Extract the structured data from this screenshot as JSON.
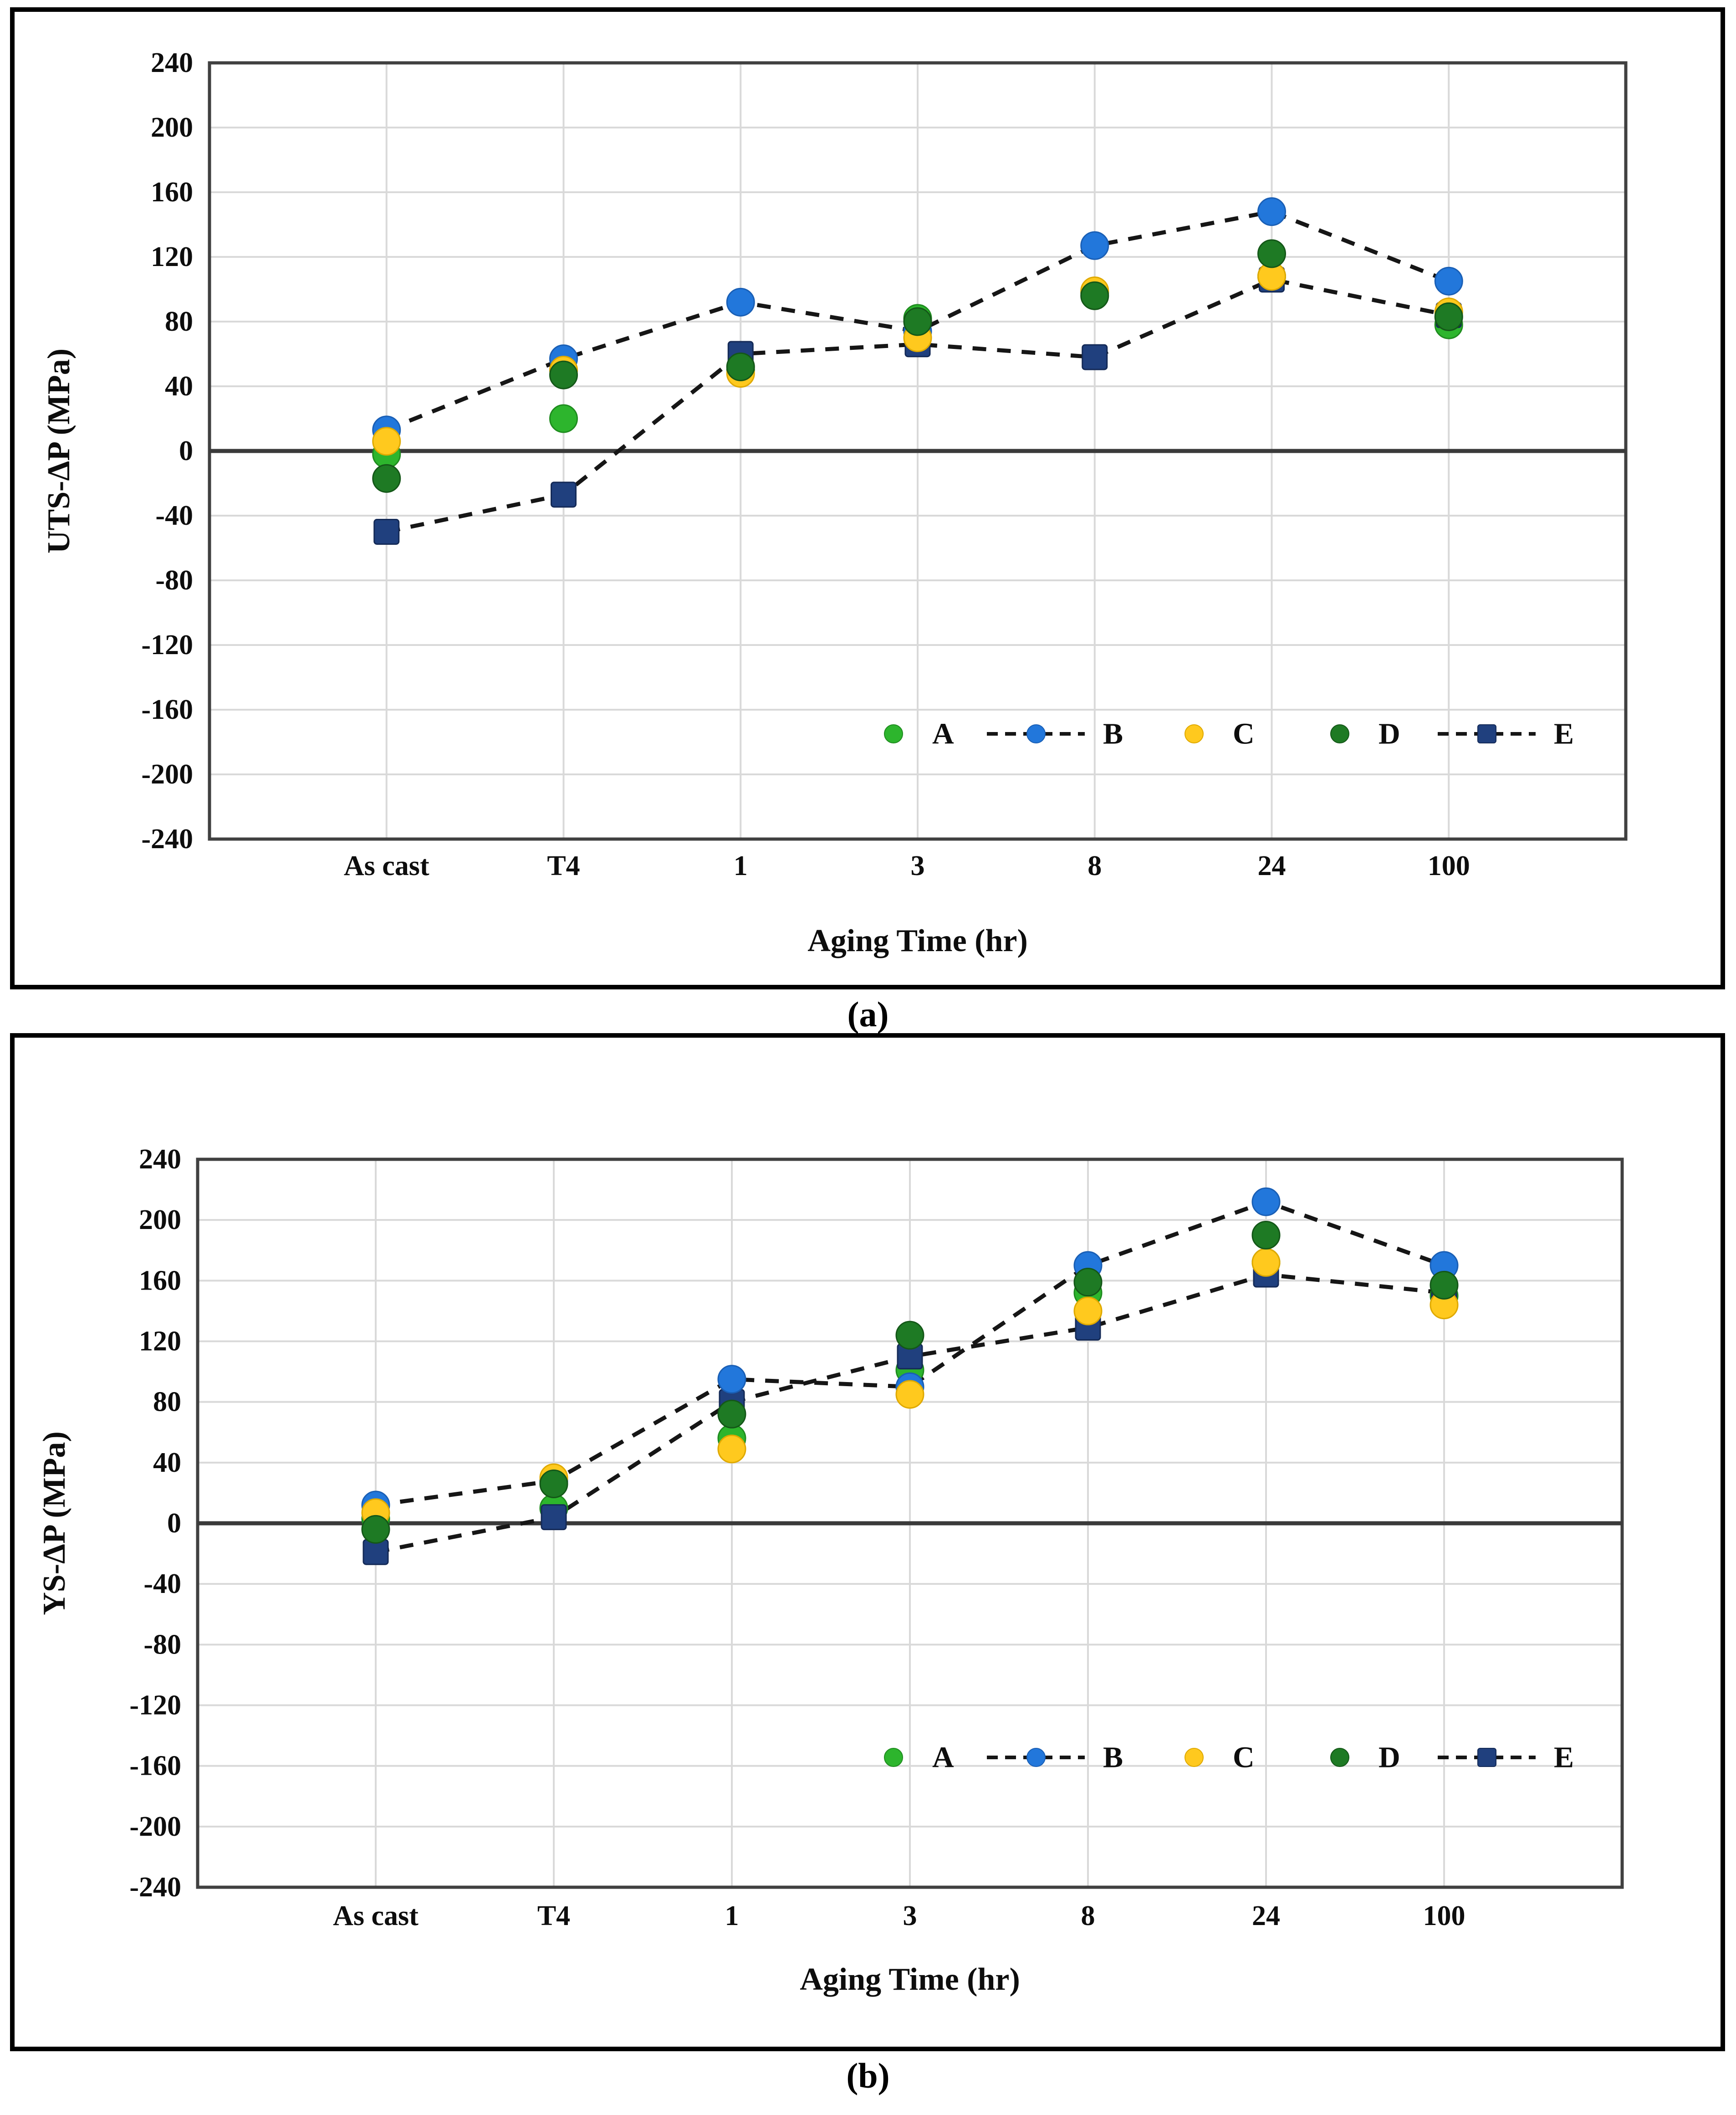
{
  "page": {
    "background": "#ffffff"
  },
  "colors": {
    "grid": "#d9d9d9",
    "plot_border": "#404040",
    "zero_line": "#3a3a3a",
    "dash_line": "#161616",
    "text": "#0d0d0d"
  },
  "chart_data": [
    {
      "id": "a",
      "type": "scatter",
      "caption": "(a)",
      "ylabel": "UTS-ΔP (MPa)",
      "xlabel": "Aging Time (hr)",
      "ylim": [
        -240,
        240
      ],
      "y_step": 40,
      "y_ticks": [
        240,
        200,
        160,
        120,
        80,
        40,
        0,
        -40,
        -80,
        -120,
        -160,
        -200,
        -240
      ],
      "categories": [
        "As cast",
        "T4",
        "1",
        "3",
        "8",
        "24",
        "100"
      ],
      "grid": true,
      "legend_position": "inside-bottom-right",
      "legend_entries": [
        "A",
        "B",
        "C",
        "D",
        "E"
      ],
      "series": [
        {
          "name": "A",
          "color": "#2db52d",
          "edge": "#1f8c1f",
          "marker": "circle",
          "dashed_line": false,
          "values": [
            -2,
            20,
            50,
            82,
            98,
            108,
            78
          ]
        },
        {
          "name": "B",
          "color": "#2277db",
          "edge": "#1a5fb5",
          "marker": "circle",
          "dashed_line": true,
          "values": [
            13,
            57,
            92,
            74,
            127,
            148,
            105
          ]
        },
        {
          "name": "C",
          "color": "#ffc91e",
          "edge": "#dfa900",
          "marker": "circle",
          "dashed_line": false,
          "values": [
            6,
            50,
            48,
            70,
            99,
            108,
            86
          ]
        },
        {
          "name": "D",
          "color": "#1e7a24",
          "edge": "#145718",
          "marker": "circle",
          "dashed_line": false,
          "values": [
            -17,
            47,
            52,
            80,
            96,
            122,
            83
          ]
        },
        {
          "name": "E",
          "color": "#20407e",
          "edge": "#142a57",
          "marker": "square",
          "dashed_line": true,
          "values": [
            -50,
            -27,
            60,
            66,
            58,
            106,
            84
          ]
        }
      ]
    },
    {
      "id": "b",
      "type": "scatter",
      "caption": "(b)",
      "ylabel": "YS-ΔP (MPa)",
      "xlabel": "Aging Time (hr)",
      "ylim": [
        -240,
        240
      ],
      "y_step": 40,
      "y_ticks": [
        240,
        200,
        160,
        120,
        80,
        40,
        0,
        -40,
        -80,
        -120,
        -160,
        -200,
        -240
      ],
      "categories": [
        "As cast",
        "T4",
        "1",
        "3",
        "8",
        "24",
        "100"
      ],
      "grid": true,
      "legend_position": "inside-bottom-right",
      "legend_entries": [
        "A",
        "B",
        "C",
        "D",
        "E"
      ],
      "series": [
        {
          "name": "A",
          "color": "#2db52d",
          "edge": "#1f8c1f",
          "marker": "circle",
          "dashed_line": false,
          "values": [
            3,
            10,
            56,
            101,
            152,
            172,
            150
          ]
        },
        {
          "name": "B",
          "color": "#2277db",
          "edge": "#1a5fb5",
          "marker": "circle",
          "dashed_line": true,
          "values": [
            12,
            28,
            95,
            90,
            170,
            212,
            170
          ]
        },
        {
          "name": "C",
          "color": "#ffc91e",
          "edge": "#dfa900",
          "marker": "circle",
          "dashed_line": false,
          "values": [
            7,
            30,
            49,
            85,
            140,
            172,
            144
          ]
        },
        {
          "name": "D",
          "color": "#1e7a24",
          "edge": "#145718",
          "marker": "circle",
          "dashed_line": false,
          "values": [
            -4,
            26,
            72,
            124,
            159,
            190,
            157
          ]
        },
        {
          "name": "E",
          "color": "#20407e",
          "edge": "#142a57",
          "marker": "square",
          "dashed_line": true,
          "values": [
            -19,
            4,
            80,
            110,
            129,
            164,
            152
          ]
        }
      ]
    }
  ]
}
